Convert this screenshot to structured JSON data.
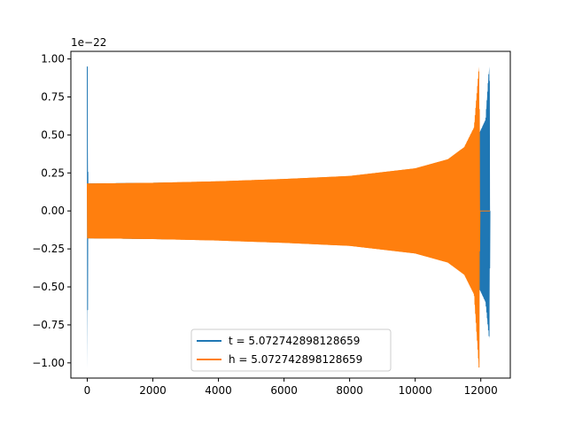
{
  "chart_data": {
    "type": "line",
    "title": "",
    "xlabel": "",
    "ylabel": "",
    "offset_label": "1e−22",
    "xlim": [
      -500,
      12900
    ],
    "ylim": [
      -1.1,
      1.05
    ],
    "x_ticks": [
      0,
      2000,
      4000,
      6000,
      8000,
      10000,
      12000
    ],
    "x_tick_labels": [
      "0",
      "2000",
      "4000",
      "6000",
      "8000",
      "10000",
      "12000"
    ],
    "y_ticks": [
      1.0,
      0.75,
      0.5,
      0.25,
      0.0,
      -0.25,
      -0.5,
      -0.75,
      -1.0
    ],
    "y_tick_labels": [
      "1.00",
      "0.75",
      "0.50",
      "0.25",
      "0.00",
      "−0.25",
      "−0.50",
      "−0.75",
      "−1.00"
    ],
    "grid": false,
    "legend_position": "lower center",
    "series": [
      {
        "name": "t = 5.072742898128659",
        "color": "#1f77b4",
        "envelope": [
          {
            "x": 0,
            "upper": 0.95,
            "lower": -1.04
          },
          {
            "x": 20,
            "upper": 0.18,
            "lower": -0.18
          },
          {
            "x": 2000,
            "upper": 0.185,
            "lower": -0.185
          },
          {
            "x": 4000,
            "upper": 0.19,
            "lower": -0.19
          },
          {
            "x": 6000,
            "upper": 0.205,
            "lower": -0.205
          },
          {
            "x": 8000,
            "upper": 0.225,
            "lower": -0.225
          },
          {
            "x": 10000,
            "upper": 0.27,
            "lower": -0.27
          },
          {
            "x": 11000,
            "upper": 0.32,
            "lower": -0.32
          },
          {
            "x": 11500,
            "upper": 0.38,
            "lower": -0.38
          },
          {
            "x": 11800,
            "upper": 0.45,
            "lower": -0.45
          },
          {
            "x": 12000,
            "upper": 0.53,
            "lower": -0.53
          },
          {
            "x": 12150,
            "upper": 0.6,
            "lower": -0.6
          },
          {
            "x": 12260,
            "upper": 0.95,
            "lower": -0.84
          },
          {
            "x": 12280,
            "upper": 0.0,
            "lower": 0.0
          }
        ]
      },
      {
        "name": "h = 5.072742898128659",
        "color": "#ff7f0e",
        "envelope": [
          {
            "x": 0,
            "upper": 0.18,
            "lower": -0.18
          },
          {
            "x": 2000,
            "upper": 0.185,
            "lower": -0.185
          },
          {
            "x": 4000,
            "upper": 0.195,
            "lower": -0.195
          },
          {
            "x": 6000,
            "upper": 0.21,
            "lower": -0.21
          },
          {
            "x": 8000,
            "upper": 0.23,
            "lower": -0.23
          },
          {
            "x": 10000,
            "upper": 0.28,
            "lower": -0.28
          },
          {
            "x": 11000,
            "upper": 0.34,
            "lower": -0.34
          },
          {
            "x": 11500,
            "upper": 0.42,
            "lower": -0.42
          },
          {
            "x": 11800,
            "upper": 0.55,
            "lower": -0.55
          },
          {
            "x": 11950,
            "upper": 0.95,
            "lower": -1.04
          },
          {
            "x": 11970,
            "upper": 0.0,
            "lower": 0.0
          },
          {
            "x": 12280,
            "upper": 0.0,
            "lower": 0.0
          }
        ]
      }
    ]
  }
}
